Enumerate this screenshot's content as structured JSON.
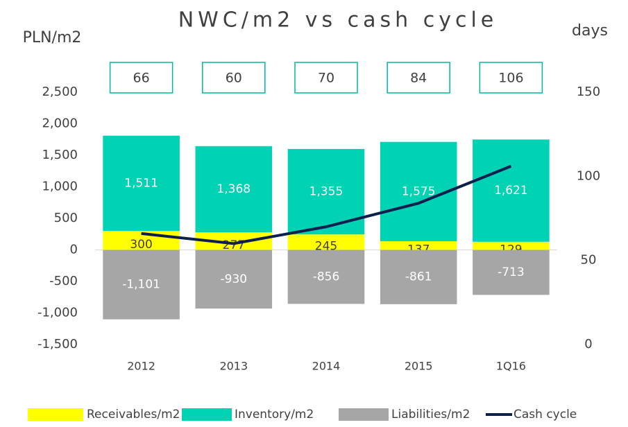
{
  "chart_data": {
    "type": "bar",
    "title": "NWC/m2 vs cash cycle",
    "y_label": "PLN/m2",
    "y2_label": "days",
    "categories": [
      "2012",
      "2013",
      "2014",
      "2015",
      "1Q16"
    ],
    "stacked": true,
    "series": [
      {
        "name": "Receivables/m2",
        "color": "#ffff00",
        "values": [
          300,
          277,
          245,
          137,
          129
        ]
      },
      {
        "name": "Inventory/m2",
        "color": "#00d2b4",
        "values": [
          1511,
          1368,
          1355,
          1575,
          1621
        ],
        "value_labels": [
          "1,511",
          "1,368",
          "1,355",
          "1,575",
          "1,621"
        ]
      },
      {
        "name": "Liabilities/m2",
        "color": "#a6a6a6",
        "values": [
          -1101,
          -930,
          -856,
          -861,
          -713
        ],
        "value_labels": [
          "-1,101",
          "-930",
          "-856",
          "-861",
          "-713"
        ]
      },
      {
        "name": "Cash cycle",
        "type": "line",
        "axis": "y2",
        "color": "#0d1f4f",
        "values": [
          66,
          60,
          70,
          84,
          106
        ]
      }
    ],
    "ylim": [
      -1500,
      2500
    ],
    "yticks": [
      {
        "value": -1500,
        "label": "-1,500"
      },
      {
        "value": -1000,
        "label": "-1,000"
      },
      -500,
      0,
      500,
      {
        "value": 1000,
        "label": "1,000"
      },
      {
        "value": 1500,
        "label": "1,500"
      },
      {
        "value": 2000,
        "label": "2,000"
      },
      {
        "value": 2500,
        "label": "2,500"
      }
    ],
    "y2lim": [
      0,
      150
    ],
    "y2ticks": [
      0,
      50,
      100,
      150
    ],
    "legend": "bottom",
    "grid": false
  }
}
